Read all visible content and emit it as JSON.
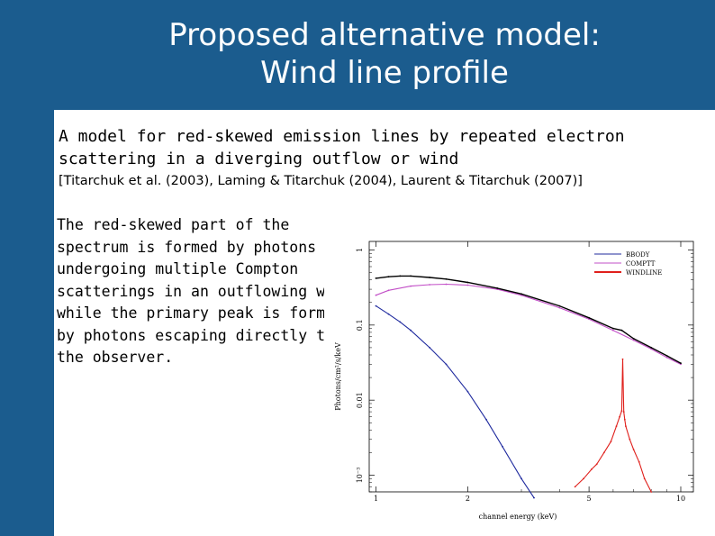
{
  "slide": {
    "title_line1": "Proposed alternative model:",
    "title_line2": "Wind line profile",
    "intro_line1": "A model for red-skewed emission lines by repeated electron",
    "intro_line2": "scattering in a diverging outflow or wind",
    "references": "[Titarchuk et al. (2003), Laming & Titarchuk (2004), Laurent & Titarchuk (2007)]",
    "paragraph_lines": [
      "The red-skewed part of the",
      "spectrum is formed by photons",
      "undergoing multiple Compton",
      "scatterings in an outflowing wind,",
      "while the primary peak is formed",
      "by photons escaping directly to",
      "the observer."
    ],
    "colors": {
      "title_band": "#1b5c8e",
      "background": "#ffffff"
    }
  },
  "chart_data": {
    "type": "line",
    "title": "",
    "xlabel": "channel energy (keV)",
    "ylabel": "Photons/cm²/s/keV",
    "xscale": "log",
    "yscale": "log",
    "xlim": [
      0.95,
      11
    ],
    "ylim": [
      0.0006,
      1.3
    ],
    "xticks": [
      1,
      2,
      5,
      10
    ],
    "xtick_labels": [
      "1",
      "2",
      "5",
      "10"
    ],
    "yticks": [
      1,
      0.1,
      0.01,
      0.001
    ],
    "ytick_labels": [
      "1",
      "0.1",
      "0.01",
      "10⁻³"
    ],
    "legend_position": "top-right",
    "series": [
      {
        "name": "BBODY",
        "color": "#1f2a9e",
        "x": [
          1.0,
          1.1,
          1.2,
          1.3,
          1.5,
          1.7,
          2.0,
          2.3,
          2.6,
          3.0,
          3.3
        ],
        "y": [
          0.18,
          0.14,
          0.11,
          0.085,
          0.05,
          0.03,
          0.013,
          0.0055,
          0.0024,
          0.0009,
          0.0005
        ]
      },
      {
        "name": "COMPTT",
        "color": "#c24fc7",
        "x": [
          1.0,
          1.1,
          1.3,
          1.5,
          1.7,
          2.0,
          2.5,
          3.0,
          4.0,
          5.0,
          6.0,
          7.0,
          8.0,
          9.0,
          10.0
        ],
        "y": [
          0.25,
          0.29,
          0.33,
          0.345,
          0.35,
          0.34,
          0.3,
          0.25,
          0.17,
          0.12,
          0.085,
          0.063,
          0.048,
          0.037,
          0.03
        ]
      },
      {
        "name": "WINDLINE",
        "color": "#e0201c",
        "x": [
          4.5,
          4.8,
          5.1,
          5.3,
          5.6,
          5.9,
          6.15,
          6.3,
          6.4,
          6.45,
          6.5,
          6.55,
          6.6,
          6.8,
          7.0,
          7.3,
          7.6,
          8.0
        ],
        "y": [
          0.0007,
          0.0009,
          0.0012,
          0.0014,
          0.002,
          0.0028,
          0.0045,
          0.006,
          0.0072,
          0.035,
          0.007,
          0.0055,
          0.0045,
          0.003,
          0.0022,
          0.0015,
          0.0009,
          0.0006
        ]
      },
      {
        "name": "",
        "color": "#000000",
        "x": [
          1.0,
          1.1,
          1.2,
          1.3,
          1.5,
          1.7,
          2.0,
          2.5,
          3.0,
          4.0,
          5.0,
          6.0,
          6.4,
          7.0,
          8.0,
          9.0,
          10.0
        ],
        "y": [
          0.42,
          0.44,
          0.45,
          0.45,
          0.43,
          0.41,
          0.37,
          0.31,
          0.26,
          0.18,
          0.125,
          0.09,
          0.085,
          0.066,
          0.05,
          0.039,
          0.031
        ]
      }
    ]
  }
}
